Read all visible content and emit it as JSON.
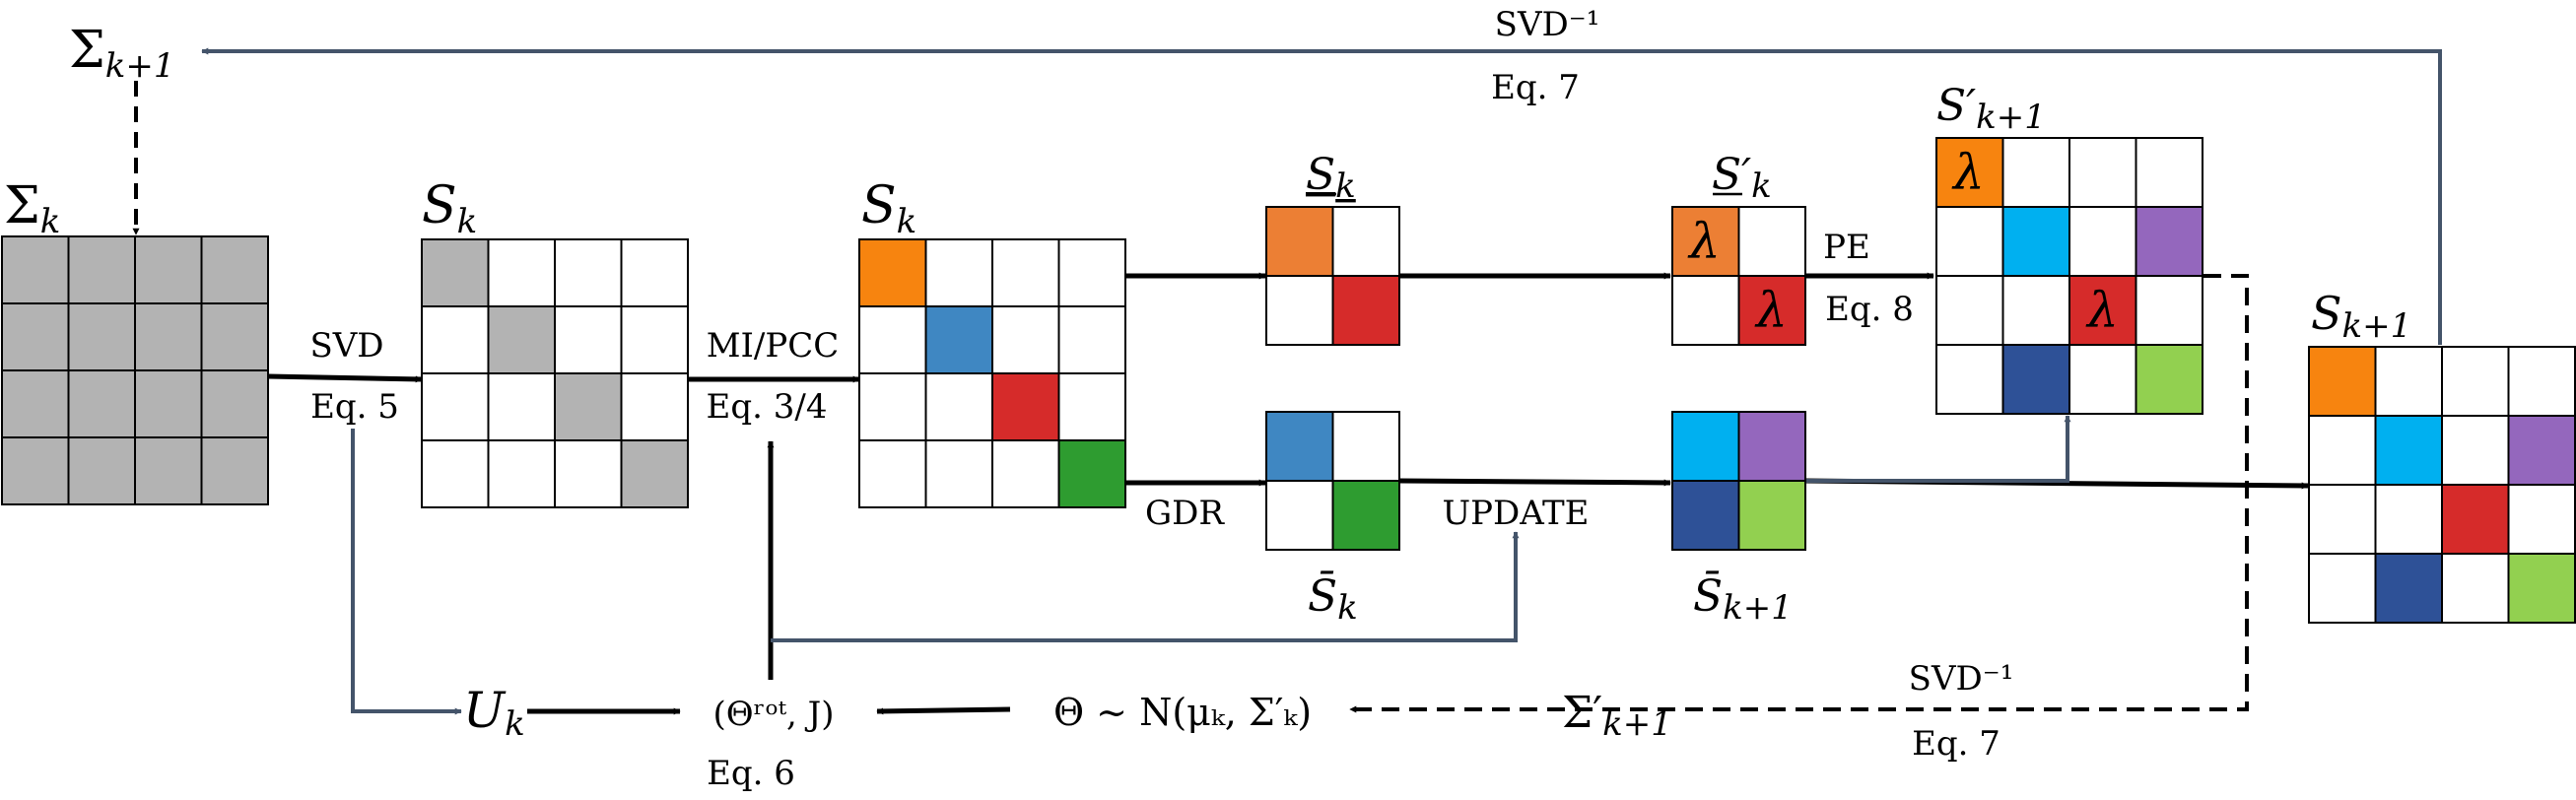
{
  "colors": {
    "gray": "#B3B3B3",
    "orange": "#F7840F",
    "light_orange": "#EC7F34",
    "blue": "#3F87C2",
    "red": "#D62B2A",
    "green": "#2E9C30",
    "cyan": "#00B0F0",
    "purple": "#9467BD",
    "navy": "#2E5197",
    "light_green": "#92D050",
    "arrow_blue": "#44546A"
  },
  "matrices": {
    "sigma_k": {
      "base": "Σ",
      "sub": "k"
    },
    "sigma_k1_top": {
      "base": "Σ",
      "sub": "k+1"
    },
    "s_k_1": {
      "base": "S",
      "sub": "k"
    },
    "s_k_2": {
      "base": "S",
      "sub": "k"
    },
    "s_k_under": {
      "base": "S",
      "sub": "k"
    },
    "s_prime_k": {
      "base": "S′",
      "sub": "k"
    },
    "s_prime_k1": {
      "base": "S′",
      "sub": "k+1"
    },
    "s_k1": {
      "base": "S",
      "sub": "k+1"
    },
    "s_bar_k": {
      "base": "S̄",
      "sub": "k"
    },
    "s_bar_k1": {
      "base": "S̄",
      "sub": "k+1"
    },
    "u_k": {
      "base": "U",
      "sub": "k"
    },
    "sigma_prime_k1": {
      "base": "Σ′",
      "sub": "k+1"
    }
  },
  "labels": {
    "svd": "SVD",
    "eq5": "Eq. 5",
    "mi_pcc": "MI/PCC",
    "eq34": "Eq. 3/4",
    "gdr": "GDR",
    "update": "UPDATE",
    "pe": "PE",
    "eq8": "Eq. 8",
    "svd_inv_top": "SVD⁻¹",
    "eq7_top": "Eq. 7",
    "svd_inv_bottom": "SVD⁻¹",
    "eq7_bottom": "Eq. 7",
    "theta_tuple": "(Θʳᵒᵗ, J)",
    "eq6": "Eq. 6",
    "theta_dist": "Θ ∼ N(μₖ, Σ′ₖ)",
    "lambda": "λ"
  }
}
